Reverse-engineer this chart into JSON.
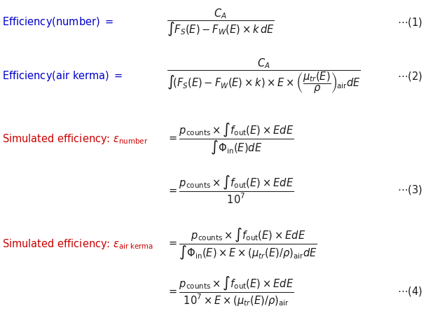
{
  "background_color": "#ffffff",
  "fig_width": 6.18,
  "fig_height": 4.44,
  "dpi": 100,
  "red_color": "#cc0000",
  "blue_color": "#0000cc",
  "black_color": "#1a1a1a",
  "fontsize": 10.5
}
